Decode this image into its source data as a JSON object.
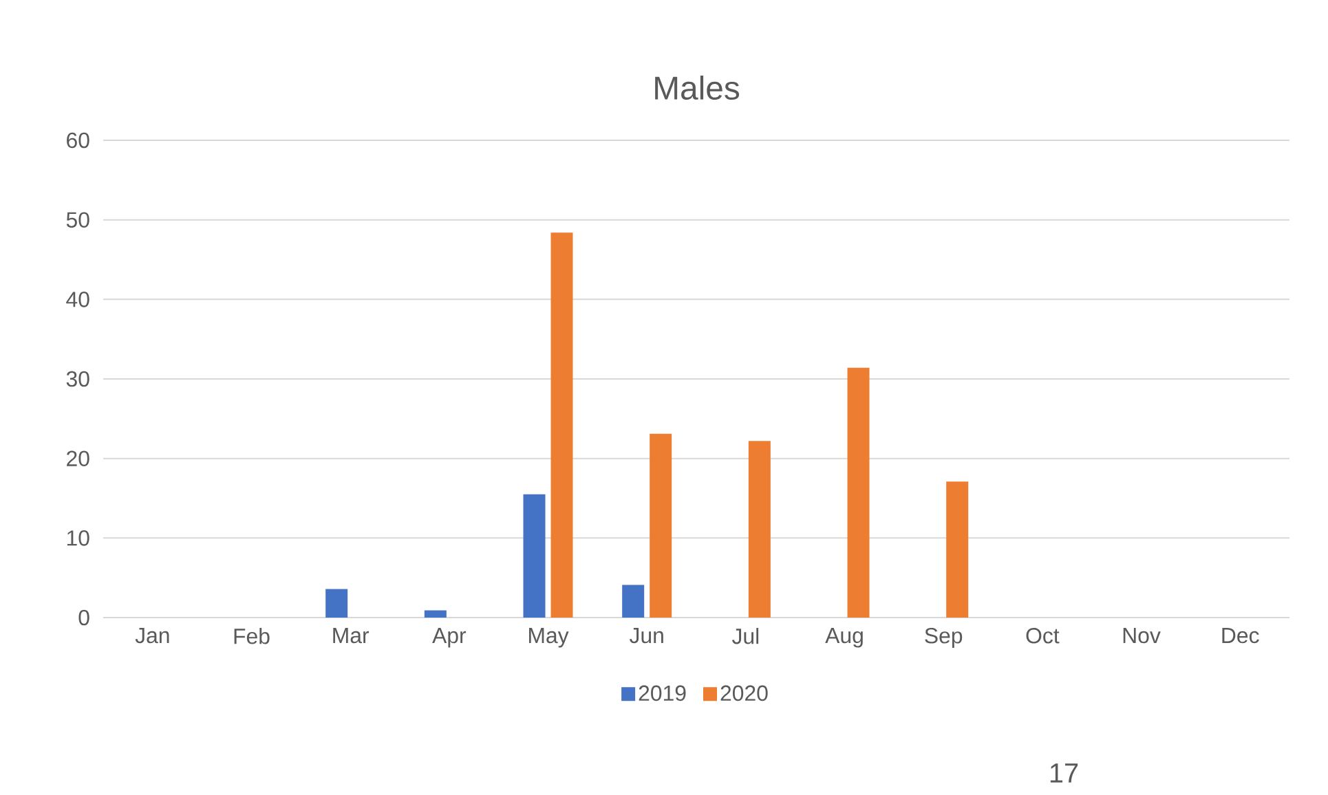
{
  "chart_data": {
    "type": "bar",
    "title": "Males",
    "categories": [
      "Jan",
      "Feb",
      "Mar",
      "Apr",
      "May",
      "Jun",
      "Jul",
      "Aug",
      "Sep",
      "Oct",
      "Nov",
      "Dec"
    ],
    "series": [
      {
        "name": "2019",
        "color": "#4472c4",
        "values": [
          null,
          null,
          3.6,
          0.9,
          15.5,
          4.1,
          null,
          null,
          null,
          null,
          null,
          null
        ]
      },
      {
        "name": "2020",
        "color": "#ed7d31",
        "values": [
          null,
          null,
          null,
          null,
          48.4,
          23.1,
          22.2,
          31.4,
          17.1,
          null,
          null,
          null
        ]
      }
    ],
    "ylim": [
      0,
      60
    ],
    "yticks": [
      0,
      10,
      20,
      30,
      40,
      50,
      60
    ],
    "grid": "y",
    "legend": "bottom",
    "annotations": [
      "17"
    ]
  }
}
